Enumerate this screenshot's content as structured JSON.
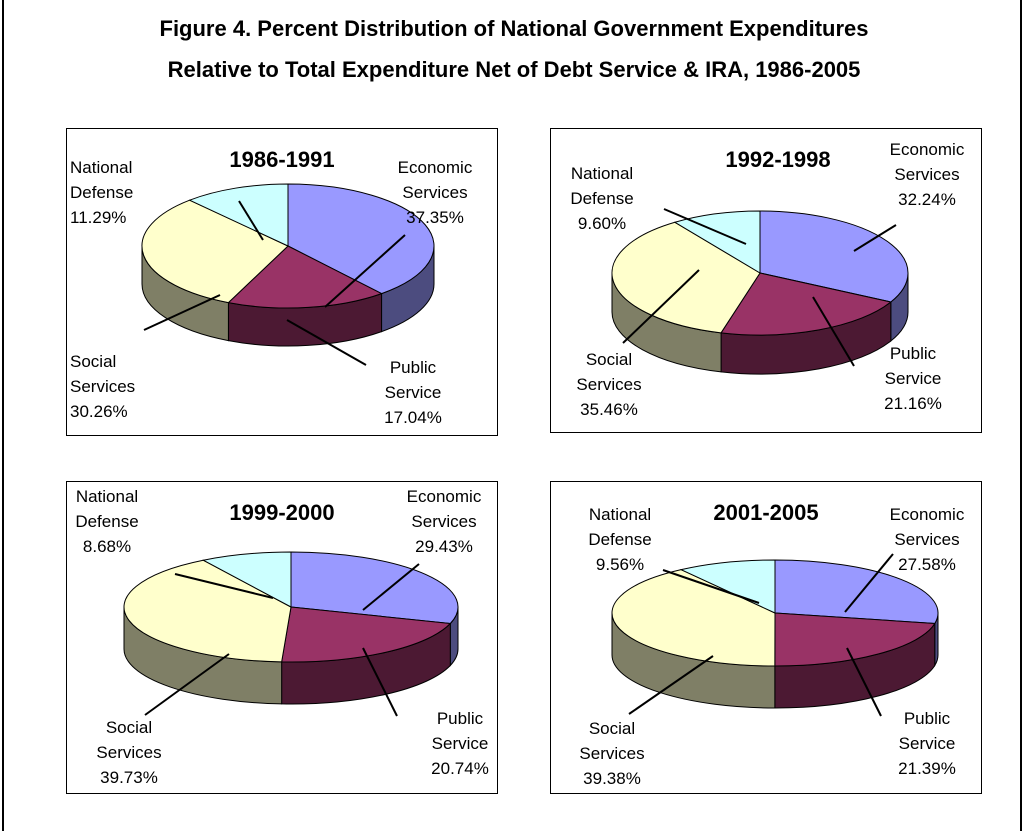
{
  "figure": {
    "title_line1": "Figure 4.  Percent Distribution of National Government Expenditures",
    "title_line2": "Relative to Total Expenditure Net of Debt Service & IRA, 1986-2005"
  },
  "colors": {
    "economic_services": "#9999ff",
    "economic_services_side": "#4c4c7f",
    "public_service": "#993366",
    "public_service_side": "#4c1933",
    "social_services": "#ffffcc",
    "social_services_side": "#7f7f66",
    "national_defense": "#ccffff",
    "national_defense_side": "#667f7f"
  },
  "chart_data": [
    {
      "type": "pie",
      "title": "1986-1991",
      "slices": [
        {
          "label_lines": [
            "Economic",
            "Services",
            "37.35%"
          ],
          "value": 37.35
        },
        {
          "label_lines": [
            "Public",
            "Service",
            "17.04%"
          ],
          "value": 17.04
        },
        {
          "label_lines": [
            "Social",
            "Services",
            "30.26%"
          ],
          "value": 30.26
        },
        {
          "label_lines": [
            "National",
            "Defense",
            "11.29%"
          ],
          "value": 11.29
        }
      ]
    },
    {
      "type": "pie",
      "title": "1992-1998",
      "slices": [
        {
          "label_lines": [
            "Economic",
            "Services",
            "32.24%"
          ],
          "value": 32.24
        },
        {
          "label_lines": [
            "Public",
            "Service",
            "21.16%"
          ],
          "value": 21.16
        },
        {
          "label_lines": [
            "Social",
            "Services",
            "35.46%"
          ],
          "value": 35.46
        },
        {
          "label_lines": [
            "National",
            "Defense",
            "9.60%"
          ],
          "value": 9.6
        }
      ]
    },
    {
      "type": "pie",
      "title": "1999-2000",
      "slices": [
        {
          "label_lines": [
            "Economic",
            "Services",
            "29.43%"
          ],
          "value": 29.43
        },
        {
          "label_lines": [
            "Public",
            "Service",
            "20.74%"
          ],
          "value": 20.74
        },
        {
          "label_lines": [
            "Social",
            "Services",
            "39.73%"
          ],
          "value": 39.73
        },
        {
          "label_lines": [
            "National",
            "Defense",
            "8.68%"
          ],
          "value": 8.68
        }
      ]
    },
    {
      "type": "pie",
      "title": "2001-2005",
      "slices": [
        {
          "label_lines": [
            "Economic",
            "Services",
            "27.58%"
          ],
          "value": 27.58
        },
        {
          "label_lines": [
            "Public",
            "Service",
            "21.39%"
          ],
          "value": 21.39
        },
        {
          "label_lines": [
            "Social",
            "Services",
            "39.38%"
          ],
          "value": 39.38
        },
        {
          "label_lines": [
            "National",
            "Defense",
            "9.56%"
          ],
          "value": 9.56
        }
      ]
    }
  ]
}
